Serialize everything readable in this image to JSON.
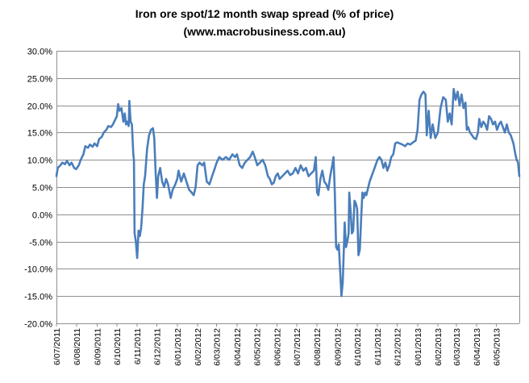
{
  "chart_data": {
    "type": "line",
    "title": "Iron ore spot/12 month swap spread (% of price)",
    "subtitle": "(www.macrobusiness.com.au)",
    "xlabel": "",
    "ylabel": "",
    "ylim": [
      -20,
      30
    ],
    "ytick_step": 5,
    "ytick_labels": [
      "30.0%",
      "25.0%",
      "20.0%",
      "15.0%",
      "10.0%",
      "5.0%",
      "0.0%",
      "-5.0%",
      "-10.0%",
      "-15.0%",
      "-20.0%"
    ],
    "xtick_labels": [
      "6/07/2011",
      "6/08/2011",
      "6/09/2011",
      "6/10/2011",
      "6/11/2011",
      "6/12/2011",
      "6/01/2012",
      "6/02/2012",
      "6/03/2012",
      "6/04/2012",
      "6/05/2012",
      "6/06/2012",
      "6/07/2012",
      "6/08/2012",
      "6/09/2012",
      "6/10/2012",
      "6/11/2012",
      "6/12/2012",
      "6/01/2013",
      "6/02/2013",
      "6/03/2013",
      "6/04/2013",
      "6/05/2013"
    ],
    "x_start": "2011-07-06",
    "x_end": "2013-06-10",
    "grid": true,
    "legend": "none",
    "series_color": "#4a7ebb",
    "series": [
      {
        "values": [
          [
            "2011-07-06",
            7.0
          ],
          [
            "2011-07-08",
            8.5
          ],
          [
            "2011-07-12",
            9.0
          ],
          [
            "2011-07-15",
            9.5
          ],
          [
            "2011-07-19",
            9.2
          ],
          [
            "2011-07-22",
            9.8
          ],
          [
            "2011-07-26",
            9.0
          ],
          [
            "2011-07-29",
            9.5
          ],
          [
            "2011-08-02",
            8.5
          ],
          [
            "2011-08-05",
            8.3
          ],
          [
            "2011-08-09",
            9.0
          ],
          [
            "2011-08-12",
            10.0
          ],
          [
            "2011-08-16",
            11.0
          ],
          [
            "2011-08-19",
            12.5
          ],
          [
            "2011-08-23",
            12.2
          ],
          [
            "2011-08-26",
            12.8
          ],
          [
            "2011-08-30",
            12.4
          ],
          [
            "2011-09-02",
            13.0
          ],
          [
            "2011-09-06",
            12.5
          ],
          [
            "2011-09-09",
            13.8
          ],
          [
            "2011-09-13",
            14.2
          ],
          [
            "2011-09-16",
            15.0
          ],
          [
            "2011-09-20",
            15.5
          ],
          [
            "2011-09-23",
            16.2
          ],
          [
            "2011-09-27",
            16.0
          ],
          [
            "2011-09-30",
            16.5
          ],
          [
            "2011-10-04",
            17.5
          ],
          [
            "2011-10-06",
            18.0
          ],
          [
            "2011-10-08",
            20.2
          ],
          [
            "2011-10-10",
            19.0
          ],
          [
            "2011-10-13",
            19.5
          ],
          [
            "2011-10-16",
            17.0
          ],
          [
            "2011-10-18",
            18.5
          ],
          [
            "2011-10-20",
            16.5
          ],
          [
            "2011-10-22",
            17.0
          ],
          [
            "2011-10-24",
            16.2
          ],
          [
            "2011-10-25",
            20.8
          ],
          [
            "2011-10-27",
            17.0
          ],
          [
            "2011-10-29",
            16.5
          ],
          [
            "2011-10-31",
            11.0
          ],
          [
            "2011-11-01",
            10.0
          ],
          [
            "2011-11-02",
            -3.5
          ],
          [
            "2011-11-04",
            -5.0
          ],
          [
            "2011-11-06",
            -8.0
          ],
          [
            "2011-11-08",
            -3.0
          ],
          [
            "2011-11-10",
            -4.0
          ],
          [
            "2011-11-12",
            -2.5
          ],
          [
            "2011-11-14",
            1.0
          ],
          [
            "2011-11-16",
            5.5
          ],
          [
            "2011-11-18",
            7.0
          ],
          [
            "2011-11-21",
            12.0
          ],
          [
            "2011-11-24",
            14.5
          ],
          [
            "2011-11-27",
            15.5
          ],
          [
            "2011-11-30",
            15.8
          ],
          [
            "2011-12-02",
            14.0
          ],
          [
            "2011-12-04",
            8.0
          ],
          [
            "2011-12-06",
            3.0
          ],
          [
            "2011-12-08",
            7.0
          ],
          [
            "2011-12-11",
            8.5
          ],
          [
            "2011-12-14",
            6.0
          ],
          [
            "2011-12-17",
            5.0
          ],
          [
            "2011-12-20",
            6.5
          ],
          [
            "2011-12-23",
            5.5
          ],
          [
            "2011-12-27",
            3.0
          ],
          [
            "2011-12-30",
            4.5
          ],
          [
            "2012-01-03",
            5.5
          ],
          [
            "2012-01-06",
            6.5
          ],
          [
            "2012-01-08",
            8.0
          ],
          [
            "2012-01-12",
            6.0
          ],
          [
            "2012-01-16",
            7.5
          ],
          [
            "2012-01-20",
            6.0
          ],
          [
            "2012-01-24",
            4.5
          ],
          [
            "2012-01-28",
            4.0
          ],
          [
            "2012-01-31",
            3.5
          ],
          [
            "2012-02-03",
            5.0
          ],
          [
            "2012-02-06",
            9.0
          ],
          [
            "2012-02-09",
            9.5
          ],
          [
            "2012-02-13",
            9.0
          ],
          [
            "2012-02-16",
            9.5
          ],
          [
            "2012-02-20",
            6.0
          ],
          [
            "2012-02-24",
            5.5
          ],
          [
            "2012-02-28",
            7.0
          ],
          [
            "2012-03-02",
            8.0
          ],
          [
            "2012-03-06",
            9.5
          ],
          [
            "2012-03-10",
            10.5
          ],
          [
            "2012-03-15",
            10.0
          ],
          [
            "2012-03-20",
            10.5
          ],
          [
            "2012-03-25",
            10.0
          ],
          [
            "2012-03-30",
            11.0
          ],
          [
            "2012-04-03",
            10.5
          ],
          [
            "2012-04-06",
            11.0
          ],
          [
            "2012-04-10",
            9.0
          ],
          [
            "2012-04-14",
            8.5
          ],
          [
            "2012-04-18",
            9.5
          ],
          [
            "2012-04-22",
            10.0
          ],
          [
            "2012-04-26",
            10.5
          ],
          [
            "2012-04-30",
            11.5
          ],
          [
            "2012-05-03",
            10.5
          ],
          [
            "2012-05-07",
            9.0
          ],
          [
            "2012-05-11",
            9.5
          ],
          [
            "2012-05-15",
            10.0
          ],
          [
            "2012-05-19",
            9.0
          ],
          [
            "2012-05-23",
            7.0
          ],
          [
            "2012-05-26",
            6.5
          ],
          [
            "2012-05-29",
            5.5
          ],
          [
            "2012-06-01",
            5.8
          ],
          [
            "2012-06-04",
            7.0
          ],
          [
            "2012-06-07",
            7.5
          ],
          [
            "2012-06-10",
            6.5
          ],
          [
            "2012-06-14",
            7.0
          ],
          [
            "2012-06-18",
            7.5
          ],
          [
            "2012-06-22",
            8.0
          ],
          [
            "2012-06-26",
            7.2
          ],
          [
            "2012-06-30",
            7.5
          ],
          [
            "2012-07-04",
            8.5
          ],
          [
            "2012-07-08",
            7.5
          ],
          [
            "2012-07-12",
            9.0
          ],
          [
            "2012-07-16",
            8.0
          ],
          [
            "2012-07-20",
            8.5
          ],
          [
            "2012-07-24",
            7.0
          ],
          [
            "2012-07-28",
            7.5
          ],
          [
            "2012-08-01",
            8.0
          ],
          [
            "2012-08-04",
            10.5
          ],
          [
            "2012-08-06",
            4.0
          ],
          [
            "2012-08-08",
            3.5
          ],
          [
            "2012-08-11",
            6.5
          ],
          [
            "2012-08-14",
            8.0
          ],
          [
            "2012-08-17",
            6.0
          ],
          [
            "2012-08-20",
            5.5
          ],
          [
            "2012-08-23",
            4.5
          ],
          [
            "2012-08-26",
            7.0
          ],
          [
            "2012-08-29",
            9.0
          ],
          [
            "2012-08-31",
            10.5
          ],
          [
            "2012-09-02",
            4.0
          ],
          [
            "2012-09-04",
            -6.0
          ],
          [
            "2012-09-06",
            -6.5
          ],
          [
            "2012-09-08",
            -5.5
          ],
          [
            "2012-09-10",
            -10.0
          ],
          [
            "2012-09-12",
            -15.0
          ],
          [
            "2012-09-14",
            -12.5
          ],
          [
            "2012-09-16",
            -5.5
          ],
          [
            "2012-09-17",
            -1.5
          ],
          [
            "2012-09-19",
            -6.0
          ],
          [
            "2012-09-21",
            -5.0
          ],
          [
            "2012-09-23",
            -3.5
          ],
          [
            "2012-09-24",
            4.0
          ],
          [
            "2012-09-26",
            0.5
          ],
          [
            "2012-09-28",
            -3.5
          ],
          [
            "2012-09-30",
            -3.0
          ],
          [
            "2012-10-02",
            2.5
          ],
          [
            "2012-10-04",
            2.0
          ],
          [
            "2012-10-06",
            1.0
          ],
          [
            "2012-10-08",
            -7.5
          ],
          [
            "2012-10-10",
            -6.5
          ],
          [
            "2012-10-12",
            -1.0
          ],
          [
            "2012-10-14",
            4.0
          ],
          [
            "2012-10-16",
            3.0
          ],
          [
            "2012-10-18",
            4.0
          ],
          [
            "2012-10-20",
            3.5
          ],
          [
            "2012-10-22",
            4.5
          ],
          [
            "2012-10-25",
            6.0
          ],
          [
            "2012-10-28",
            7.0
          ],
          [
            "2012-10-31",
            8.0
          ],
          [
            "2012-11-03",
            9.0
          ],
          [
            "2012-11-06",
            10.0
          ],
          [
            "2012-11-09",
            10.5
          ],
          [
            "2012-11-12",
            10.0
          ],
          [
            "2012-11-15",
            8.5
          ],
          [
            "2012-11-18",
            9.5
          ],
          [
            "2012-11-21",
            8.0
          ],
          [
            "2012-11-24",
            9.0
          ],
          [
            "2012-11-27",
            10.5
          ],
          [
            "2012-11-30",
            11.0
          ],
          [
            "2012-12-03",
            13.0
          ],
          [
            "2012-12-06",
            13.2
          ],
          [
            "2012-12-10",
            13.0
          ],
          [
            "2012-12-14",
            12.8
          ],
          [
            "2012-12-18",
            12.5
          ],
          [
            "2012-12-22",
            13.0
          ],
          [
            "2012-12-26",
            12.8
          ],
          [
            "2012-12-30",
            13.2
          ],
          [
            "2013-01-03",
            13.5
          ],
          [
            "2013-01-06",
            15.5
          ],
          [
            "2013-01-09",
            21.0
          ],
          [
            "2013-01-12",
            22.0
          ],
          [
            "2013-01-15",
            22.5
          ],
          [
            "2013-01-18",
            22.0
          ],
          [
            "2013-01-20",
            14.5
          ],
          [
            "2013-01-23",
            19.0
          ],
          [
            "2013-01-26",
            14.0
          ],
          [
            "2013-01-29",
            16.5
          ],
          [
            "2013-02-02",
            14.0
          ],
          [
            "2013-02-06",
            15.0
          ],
          [
            "2013-02-10",
            19.5
          ],
          [
            "2013-02-14",
            21.5
          ],
          [
            "2013-02-18",
            21.0
          ],
          [
            "2013-02-21",
            17.0
          ],
          [
            "2013-02-24",
            18.5
          ],
          [
            "2013-02-27",
            16.5
          ],
          [
            "2013-03-02",
            23.0
          ],
          [
            "2013-03-05",
            21.0
          ],
          [
            "2013-03-08",
            22.5
          ],
          [
            "2013-03-11",
            20.0
          ],
          [
            "2013-03-14",
            22.0
          ],
          [
            "2013-03-17",
            19.5
          ],
          [
            "2013-03-20",
            20.5
          ],
          [
            "2013-03-22",
            15.5
          ],
          [
            "2013-03-24",
            16.0
          ],
          [
            "2013-03-27",
            15.0
          ],
          [
            "2013-03-30",
            14.5
          ],
          [
            "2013-04-02",
            14.0
          ],
          [
            "2013-04-05",
            13.8
          ],
          [
            "2013-04-08",
            15.0
          ],
          [
            "2013-04-10",
            17.5
          ],
          [
            "2013-04-13",
            16.0
          ],
          [
            "2013-04-16",
            17.0
          ],
          [
            "2013-04-19",
            16.5
          ],
          [
            "2013-04-22",
            15.5
          ],
          [
            "2013-04-25",
            18.0
          ],
          [
            "2013-04-28",
            17.5
          ],
          [
            "2013-05-01",
            16.5
          ],
          [
            "2013-05-04",
            17.0
          ],
          [
            "2013-05-07",
            15.5
          ],
          [
            "2013-05-10",
            16.5
          ],
          [
            "2013-05-13",
            17.0
          ],
          [
            "2013-05-16",
            16.0
          ],
          [
            "2013-05-19",
            15.0
          ],
          [
            "2013-05-22",
            16.5
          ],
          [
            "2013-05-25",
            15.0
          ],
          [
            "2013-05-28",
            14.5
          ],
          [
            "2013-06-01",
            13.0
          ],
          [
            "2013-06-04",
            11.0
          ],
          [
            "2013-06-06",
            10.0
          ],
          [
            "2013-06-08",
            9.5
          ],
          [
            "2013-06-10",
            7.0
          ]
        ]
      }
    ]
  }
}
